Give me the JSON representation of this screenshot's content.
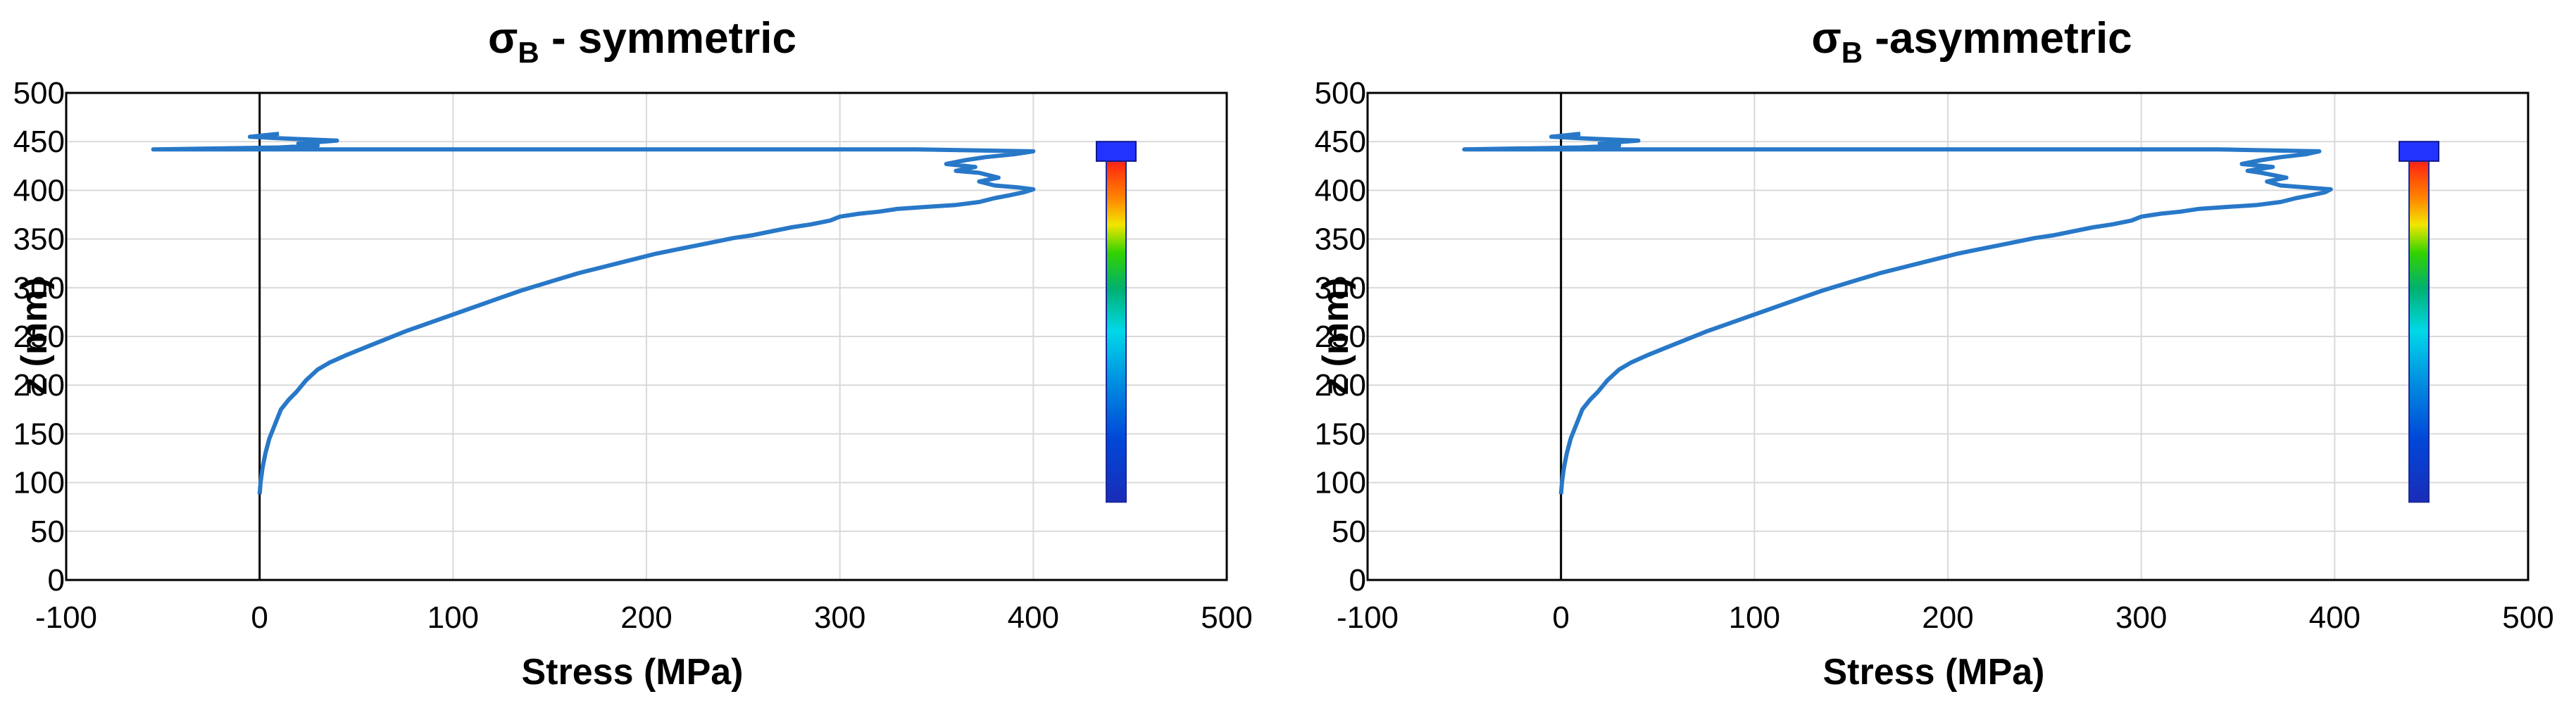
{
  "colors": {
    "series": "#2878c8",
    "grid": "#d9d9d9",
    "axis": "#000000",
    "frame": "#000000"
  },
  "chart_data": [
    {
      "type": "line",
      "title": "σB - symmetric",
      "title_main": "σ",
      "title_sub": "B",
      "title_rest": " - symmetric",
      "xlabel": "Stress (MPa)",
      "ylabel": "z (mm)",
      "xlim": [
        -100,
        500
      ],
      "ylim": [
        0,
        500
      ],
      "xticks": [
        "-100",
        "0",
        "100",
        "200",
        "300",
        "400",
        "500"
      ],
      "yticks": [
        "0",
        "50",
        "100",
        "150",
        "200",
        "250",
        "300",
        "350",
        "400",
        "450",
        "500"
      ],
      "grid": true,
      "legend": "none",
      "inset": "beam stress contour image (blue–green–red)",
      "series": [
        {
          "values": [
            [
              0,
              88
            ],
            [
              0.5,
              100
            ],
            [
              1.5,
              115
            ],
            [
              3,
              130
            ],
            [
              5,
              145
            ],
            [
              8,
              160
            ],
            [
              11,
              175
            ],
            [
              15,
              185
            ],
            [
              19,
              193
            ],
            [
              24,
              205
            ],
            [
              30,
              216
            ],
            [
              36,
              223
            ],
            [
              45,
              231
            ],
            [
              55,
              239
            ],
            [
              65,
              247
            ],
            [
              75,
              255
            ],
            [
              85,
              262
            ],
            [
              95,
              269
            ],
            [
              105,
              276
            ],
            [
              115,
              283
            ],
            [
              125,
              290
            ],
            [
              135,
              297
            ],
            [
              145,
              303
            ],
            [
              155,
              309
            ],
            [
              165,
              315
            ],
            [
              175,
              320
            ],
            [
              185,
              325
            ],
            [
              195,
              330
            ],
            [
              205,
              335
            ],
            [
              215,
              339
            ],
            [
              225,
              343
            ],
            [
              235,
              347
            ],
            [
              245,
              351
            ],
            [
              255,
              354
            ],
            [
              265,
              358
            ],
            [
              275,
              362
            ],
            [
              285,
              365
            ],
            [
              295,
              369
            ],
            [
              300,
              373
            ],
            [
              310,
              376
            ],
            [
              320,
              378
            ],
            [
              330,
              381
            ],
            [
              345,
              383
            ],
            [
              360,
              385
            ],
            [
              372,
              388
            ],
            [
              380,
              392
            ],
            [
              388,
              395
            ],
            [
              395,
              398
            ],
            [
              400,
              401
            ],
            [
              392,
              403
            ],
            [
              380,
              405
            ],
            [
              372,
              409
            ],
            [
              382,
              413
            ],
            [
              372,
              418
            ],
            [
              360,
              420
            ],
            [
              370,
              424
            ],
            [
              355,
              427
            ],
            [
              365,
              431
            ],
            [
              375,
              434
            ],
            [
              390,
              437
            ],
            [
              400,
              440
            ],
            [
              340,
              442
            ],
            [
              300,
              442
            ],
            [
              150,
              442
            ],
            [
              -55,
              442
            ],
            [
              10,
              444
            ],
            [
              30,
              446
            ],
            [
              20,
              448
            ],
            [
              40,
              451
            ],
            [
              15,
              453
            ],
            [
              -5,
              455
            ],
            [
              10,
              458
            ]
          ]
        }
      ]
    },
    {
      "type": "line",
      "title": "σB -asymmetric",
      "title_main": "σ",
      "title_sub": "B",
      "title_rest": " -asymmetric",
      "xlabel": "Stress (MPa)",
      "ylabel": "z (mm)",
      "xlim": [
        -100,
        500
      ],
      "ylim": [
        0,
        500
      ],
      "xticks": [
        "-100",
        "0",
        "100",
        "200",
        "300",
        "400",
        "500"
      ],
      "yticks": [
        "0",
        "50",
        "100",
        "150",
        "200",
        "250",
        "300",
        "350",
        "400",
        "450",
        "500"
      ],
      "grid": true,
      "legend": "none",
      "inset": "beam stress contour image (blue–green–red)",
      "series": [
        {
          "values": [
            [
              0,
              88
            ],
            [
              0.5,
              100
            ],
            [
              1.5,
              115
            ],
            [
              3,
              130
            ],
            [
              5,
              145
            ],
            [
              8,
              160
            ],
            [
              11,
              175
            ],
            [
              15,
              185
            ],
            [
              19,
              193
            ],
            [
              24,
              205
            ],
            [
              30,
              216
            ],
            [
              36,
              223
            ],
            [
              45,
              231
            ],
            [
              55,
              239
            ],
            [
              65,
              247
            ],
            [
              75,
              255
            ],
            [
              85,
              262
            ],
            [
              95,
              269
            ],
            [
              105,
              276
            ],
            [
              115,
              283
            ],
            [
              125,
              290
            ],
            [
              135,
              297
            ],
            [
              145,
              303
            ],
            [
              155,
              309
            ],
            [
              165,
              315
            ],
            [
              175,
              320
            ],
            [
              185,
              325
            ],
            [
              195,
              330
            ],
            [
              205,
              335
            ],
            [
              215,
              339
            ],
            [
              225,
              343
            ],
            [
              235,
              347
            ],
            [
              245,
              351
            ],
            [
              255,
              354
            ],
            [
              265,
              358
            ],
            [
              275,
              362
            ],
            [
              285,
              365
            ],
            [
              295,
              369
            ],
            [
              300,
              373
            ],
            [
              310,
              376
            ],
            [
              320,
              378
            ],
            [
              330,
              381
            ],
            [
              345,
              383
            ],
            [
              360,
              385
            ],
            [
              372,
              388
            ],
            [
              380,
              392
            ],
            [
              388,
              395
            ],
            [
              395,
              398
            ],
            [
              398,
              401
            ],
            [
              385,
              403
            ],
            [
              372,
              405
            ],
            [
              365,
              409
            ],
            [
              375,
              413
            ],
            [
              362,
              418
            ],
            [
              355,
              420
            ],
            [
              368,
              424
            ],
            [
              352,
              427
            ],
            [
              362,
              431
            ],
            [
              372,
              434
            ],
            [
              385,
              437
            ],
            [
              392,
              440
            ],
            [
              340,
              442
            ],
            [
              300,
              442
            ],
            [
              150,
              442
            ],
            [
              -50,
              442
            ],
            [
              10,
              444
            ],
            [
              30,
              446
            ],
            [
              20,
              448
            ],
            [
              40,
              451
            ],
            [
              15,
              453
            ],
            [
              -5,
              455
            ],
            [
              10,
              458
            ]
          ]
        }
      ]
    }
  ]
}
